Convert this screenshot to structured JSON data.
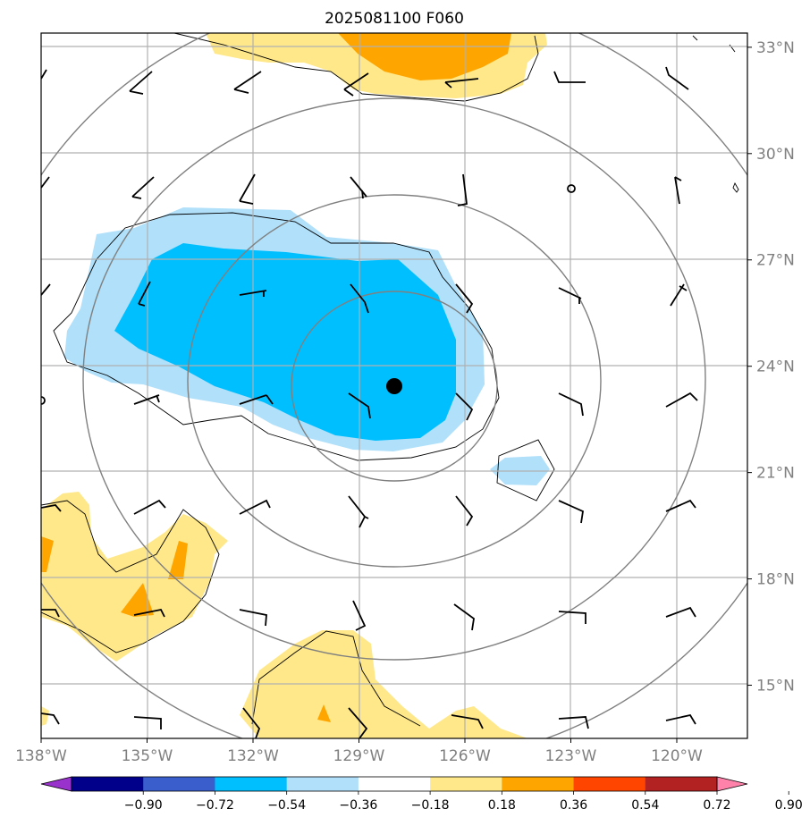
{
  "chart_data": {
    "type": "heatmap",
    "title": "2025081100 F060",
    "x_ticks": [
      "138°W",
      "135°W",
      "132°W",
      "129°W",
      "126°W",
      "123°W",
      "120°W"
    ],
    "x_tick_values": [
      -138,
      -135,
      -132,
      -129,
      -126,
      -123,
      -120
    ],
    "y_ticks": [
      "15°N",
      "18°N",
      "21°N",
      "24°N",
      "27°N",
      "30°N",
      "33°N"
    ],
    "y_tick_values": [
      15,
      18,
      21,
      24,
      27,
      30,
      33
    ],
    "xlim": [
      -138,
      -118
    ],
    "ylim": [
      13.5,
      33.4
    ],
    "grid": true,
    "center": {
      "lon": -128.0,
      "lat": 23.4
    },
    "range_rings_deg": [
      3,
      6,
      9,
      12
    ],
    "colorbar": {
      "levels": [
        -0.9,
        -0.72,
        -0.54,
        -0.36,
        -0.18,
        0.18,
        0.36,
        0.54,
        0.72,
        0.9
      ],
      "labels": [
        "−0.90",
        "−0.72",
        "−0.54",
        "−0.36",
        "−0.18",
        "0.18",
        "0.36",
        "0.54",
        "0.72",
        "0.90"
      ],
      "colors": [
        "#9932cc",
        "#00008b",
        "#3a5fcd",
        "#00bfff",
        "#b0e0fa",
        "#ffffff",
        "#ffe88a",
        "#ffa500",
        "#ff4500",
        "#b22222",
        "#ff82ab"
      ]
    },
    "wind_barb_lon": [
      -138,
      -135,
      -132,
      -129,
      -126,
      -123,
      -120
    ],
    "wind_barb_lat": [
      14,
      17,
      20,
      23,
      26,
      29,
      32
    ]
  }
}
